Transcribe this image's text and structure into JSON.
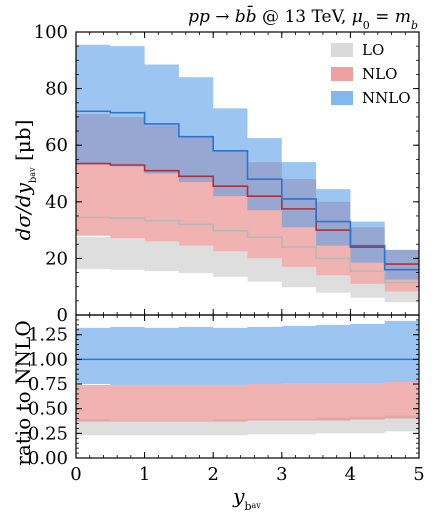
{
  "chart_data": {
    "type": "area",
    "title": "pp → bb̄ @ 13 TeV, μ₀ = m_b",
    "xlabel": "y_b_av",
    "x_bins": [
      0,
      0.5,
      1,
      1.5,
      2,
      2.5,
      3,
      3.5,
      4,
      4.5,
      5
    ],
    "x_ticks": [
      "0",
      "1",
      "2",
      "3",
      "4",
      "5"
    ],
    "legend_position": "top-right",
    "colors": {
      "LO": "#d3d3d3",
      "NLO": "#e87f7f",
      "NNLO": "#5aa0e8",
      "NNLO_line": "#2b74d4",
      "NLO_line": "#b0303a",
      "LO_line": "#b8b8b8"
    },
    "main_panel": {
      "ylabel": "dσ/dy_b_av [μb]",
      "ylim": [
        0,
        100
      ],
      "y_ticks": [
        "0",
        "20",
        "40",
        "60",
        "80",
        "100"
      ],
      "series": [
        {
          "name": "LO",
          "central": [
            34.5,
            34.2,
            33.3,
            32.0,
            29.8,
            27.5,
            24.0,
            20.0,
            15.5,
            11.5
          ],
          "low": [
            16.3,
            16.0,
            15.5,
            14.8,
            13.5,
            11.8,
            9.8,
            7.9,
            6.1,
            4.5
          ],
          "high": [
            27.5,
            26.8,
            26.0,
            24.5,
            22.5,
            20.0,
            17.0,
            14.0,
            11.0,
            8.3
          ]
        },
        {
          "name": "NLO",
          "central": [
            53.5,
            53.0,
            51.0,
            49.0,
            45.5,
            42.0,
            37.5,
            30.0,
            24.0,
            18.0
          ],
          "low": [
            28.0,
            27.0,
            26.0,
            24.5,
            22.5,
            20.0,
            17.0,
            14.0,
            11.0,
            8.3
          ],
          "high": [
            71.0,
            70.0,
            67.0,
            63.0,
            58.0,
            54.0,
            48.0,
            40.0,
            31.0,
            23.0
          ]
        },
        {
          "name": "NNLO",
          "central": [
            72.0,
            71.5,
            67.5,
            63.0,
            58.0,
            48.0,
            41.0,
            33.0,
            24.5,
            16.0
          ],
          "low": [
            53.5,
            52.5,
            50.0,
            47.0,
            42.0,
            37.0,
            31.0,
            24.5,
            18.5,
            12.5
          ],
          "high": [
            95.5,
            95.0,
            88.5,
            84.0,
            73.0,
            62.5,
            54.0,
            44.5,
            33.0,
            23.0
          ]
        }
      ]
    },
    "ratio_panel": {
      "ylabel": "ratio to NNLO",
      "ylim": [
        0,
        1.45
      ],
      "y_ticks": [
        "0.00",
        "0.25",
        "0.50",
        "0.75",
        "1.00",
        "1.25"
      ],
      "series": [
        {
          "name": "LO",
          "low": [
            0.23,
            0.23,
            0.23,
            0.23,
            0.23,
            0.24,
            0.24,
            0.25,
            0.25,
            0.27
          ],
          "high": [
            0.39,
            0.38,
            0.38,
            0.38,
            0.39,
            0.4,
            0.4,
            0.41,
            0.42,
            0.43
          ]
        },
        {
          "name": "NLO",
          "low": [
            0.37,
            0.37,
            0.37,
            0.37,
            0.37,
            0.38,
            0.38,
            0.38,
            0.39,
            0.4
          ],
          "high": [
            0.74,
            0.74,
            0.74,
            0.74,
            0.74,
            0.75,
            0.76,
            0.76,
            0.76,
            0.77
          ]
        },
        {
          "name": "NNLO",
          "central": [
            1.0,
            1.0,
            1.0,
            1.0,
            1.0,
            1.0,
            1.0,
            1.0,
            1.0,
            1.0
          ],
          "low": [
            0.75,
            0.74,
            0.74,
            0.74,
            0.74,
            0.75,
            0.76,
            0.76,
            0.76,
            0.77
          ],
          "high": [
            1.32,
            1.33,
            1.32,
            1.33,
            1.32,
            1.33,
            1.34,
            1.35,
            1.36,
            1.39
          ]
        }
      ]
    }
  }
}
